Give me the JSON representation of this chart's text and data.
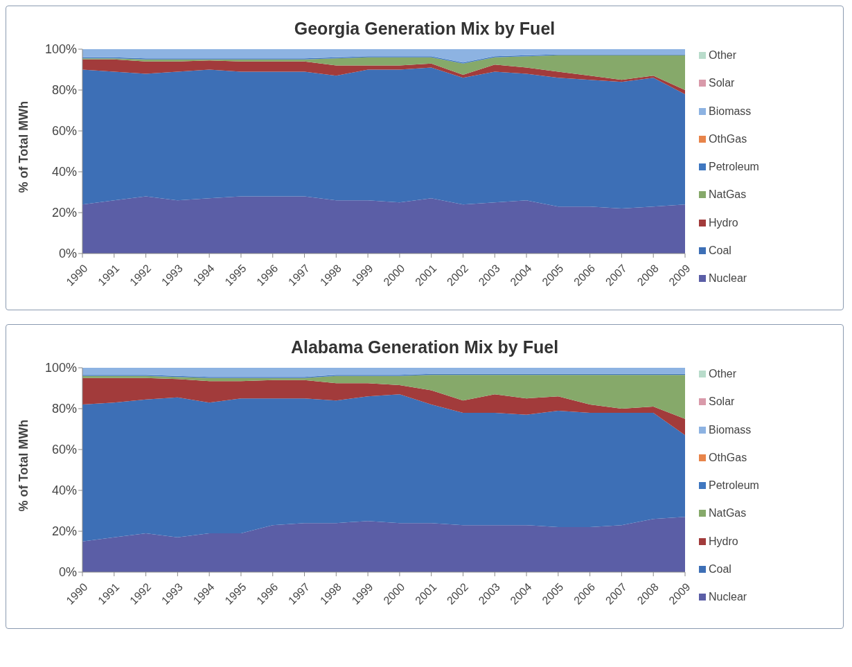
{
  "chart_data": [
    {
      "type": "area",
      "title": "Georgia Generation Mix by Fuel",
      "ylabel": "% of Total MWh",
      "stacked": true,
      "legend": "right",
      "grid": false,
      "categories": [
        "1990",
        "1991",
        "1992",
        "1993",
        "1994",
        "1995",
        "1996",
        "1997",
        "1998",
        "1999",
        "2000",
        "2001",
        "2002",
        "2003",
        "2004",
        "2005",
        "2006",
        "2007",
        "2008",
        "2009"
      ],
      "ylim": [
        0,
        100
      ],
      "yticks": [
        {
          "value": 0,
          "label": "0%"
        },
        {
          "value": 20,
          "label": "20%"
        },
        {
          "value": 40,
          "label": "40%"
        },
        {
          "value": 60,
          "label": "60%"
        },
        {
          "value": 80,
          "label": "80%"
        },
        {
          "value": 100,
          "label": "100%"
        }
      ],
      "series": [
        {
          "name": "Nuclear",
          "color": "#5b5ea6",
          "values": [
            24,
            26,
            28,
            26,
            27,
            28,
            28,
            28,
            26,
            26,
            25,
            27,
            24,
            25,
            26,
            23,
            23,
            22,
            23,
            24
          ]
        },
        {
          "name": "Coal",
          "color": "#3d6fb6",
          "values": [
            66,
            63,
            60,
            63,
            63,
            61,
            61,
            61,
            61,
            64,
            65,
            64,
            62,
            64,
            62,
            63,
            62,
            62,
            63,
            54
          ]
        },
        {
          "name": "Hydro",
          "color": "#a23b3b",
          "values": [
            5,
            6,
            6,
            5,
            4.5,
            5,
            5,
            5,
            5,
            2,
            2,
            2,
            1.5,
            3.5,
            3,
            3,
            2,
            1,
            1,
            2
          ]
        },
        {
          "name": "NatGas",
          "color": "#86a96a",
          "values": [
            0.5,
            0.5,
            1,
            1,
            0.5,
            1,
            1,
            1,
            3.5,
            4,
            4,
            3,
            5.5,
            3.5,
            5.5,
            8,
            10,
            12,
            10,
            17
          ]
        },
        {
          "name": "Petroleum",
          "color": "#3f77c0",
          "values": [
            0.5,
            0.5,
            0.5,
            0.5,
            0.5,
            0.5,
            0.5,
            0.5,
            0.5,
            0.5,
            0.5,
            0.5,
            0.5,
            0.5,
            0.5,
            0.5,
            0.5,
            0.5,
            0.5,
            0.5
          ]
        },
        {
          "name": "OthGas",
          "color": "#e8844a",
          "values": [
            null,
            null,
            null,
            null,
            null,
            null,
            null,
            null,
            null,
            null,
            null,
            null,
            null,
            null,
            null,
            null,
            null,
            null,
            null,
            null
          ]
        },
        {
          "name": "Biomass",
          "color": "#8db3e2",
          "values": [
            4,
            4,
            4.5,
            4.5,
            4.5,
            4.5,
            4.5,
            4.5,
            4,
            3.5,
            3.5,
            3.5,
            6.5,
            3.5,
            3,
            2.5,
            2.5,
            2.5,
            2.5,
            2.5
          ]
        },
        {
          "name": "Solar",
          "color": "#d99aaa",
          "values": [
            null,
            null,
            null,
            null,
            null,
            null,
            null,
            null,
            null,
            null,
            null,
            null,
            null,
            null,
            null,
            null,
            null,
            null,
            null,
            null
          ]
        },
        {
          "name": "Other",
          "color": "#b9dccb",
          "values": [
            null,
            null,
            null,
            null,
            null,
            null,
            null,
            null,
            null,
            null,
            null,
            null,
            null,
            null,
            null,
            null,
            null,
            null,
            null,
            null
          ]
        }
      ]
    },
    {
      "type": "area",
      "title": "Alabama Generation Mix by Fuel",
      "ylabel": "% of Total MWh",
      "stacked": true,
      "legend": "right",
      "grid": false,
      "categories": [
        "1990",
        "1991",
        "1992",
        "1993",
        "1994",
        "1995",
        "1996",
        "1997",
        "1998",
        "1999",
        "2000",
        "2001",
        "2002",
        "2003",
        "2004",
        "2005",
        "2006",
        "2007",
        "2008",
        "2009"
      ],
      "ylim": [
        0,
        100
      ],
      "yticks": [
        {
          "value": 0,
          "label": "0%"
        },
        {
          "value": 20,
          "label": "20%"
        },
        {
          "value": 40,
          "label": "40%"
        },
        {
          "value": 60,
          "label": "60%"
        },
        {
          "value": 80,
          "label": "80%"
        },
        {
          "value": 100,
          "label": "100%"
        }
      ],
      "series": [
        {
          "name": "Nuclear",
          "color": "#5b5ea6",
          "values": [
            15,
            17,
            19,
            17,
            19,
            19,
            23,
            24,
            24,
            25,
            24,
            24,
            23,
            23,
            23,
            22,
            22,
            23,
            26,
            27
          ]
        },
        {
          "name": "Coal",
          "color": "#3d6fb6",
          "values": [
            67,
            66,
            65.5,
            68.5,
            64,
            66,
            62,
            61,
            60,
            61,
            63,
            58,
            55,
            55,
            54,
            57,
            56,
            55,
            52,
            40
          ]
        },
        {
          "name": "Hydro",
          "color": "#a23b3b",
          "values": [
            13,
            12,
            10.5,
            9,
            10.5,
            8.5,
            9,
            9,
            8.5,
            6.5,
            4.5,
            7,
            6,
            9,
            8,
            7,
            4,
            2,
            3,
            8
          ]
        },
        {
          "name": "NatGas",
          "color": "#86a96a",
          "values": [
            1,
            1,
            1,
            1,
            1.5,
            1.5,
            1,
            1,
            3.5,
            3.5,
            4.5,
            7.5,
            12.5,
            9.5,
            11.5,
            10.5,
            14.5,
            16.5,
            15.5,
            21.5
          ]
        },
        {
          "name": "Petroleum",
          "color": "#3f77c0",
          "values": [
            0.5,
            0.5,
            0.5,
            0.5,
            0.5,
            0.5,
            0.5,
            0.5,
            0.5,
            0.5,
            0.5,
            0.5,
            0.5,
            0.5,
            0.5,
            0.5,
            0.5,
            0.5,
            0.5,
            0.5
          ]
        },
        {
          "name": "OthGas",
          "color": "#e8844a",
          "values": [
            null,
            null,
            null,
            null,
            null,
            null,
            null,
            null,
            null,
            null,
            null,
            null,
            null,
            null,
            null,
            null,
            null,
            null,
            null,
            null
          ]
        },
        {
          "name": "Biomass",
          "color": "#8db3e2",
          "values": [
            3.5,
            3.5,
            3.5,
            4,
            4.5,
            4.5,
            4.5,
            4.5,
            3.5,
            3.5,
            3.5,
            3,
            3,
            3,
            3,
            3,
            3,
            3,
            3,
            3
          ]
        },
        {
          "name": "Solar",
          "color": "#d99aaa",
          "values": [
            null,
            null,
            null,
            null,
            null,
            null,
            null,
            null,
            null,
            null,
            null,
            null,
            null,
            null,
            null,
            null,
            null,
            null,
            null,
            null
          ]
        },
        {
          "name": "Other",
          "color": "#b9dccb",
          "values": [
            null,
            null,
            null,
            null,
            null,
            null,
            null,
            null,
            null,
            null,
            null,
            null,
            null,
            null,
            null,
            null,
            null,
            null,
            null,
            null
          ]
        }
      ]
    }
  ]
}
